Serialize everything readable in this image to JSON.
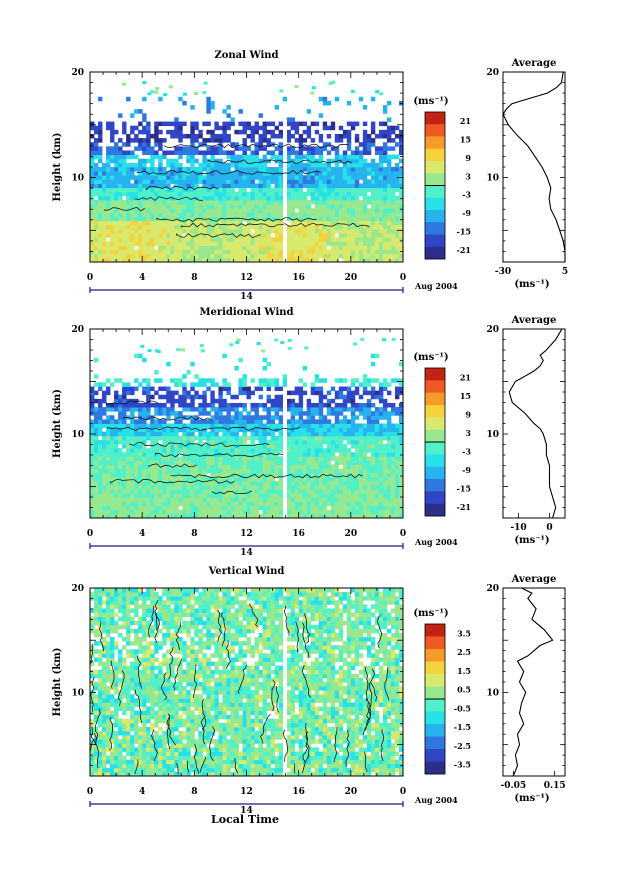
{
  "xlabel_bottom": "Local Time",
  "panels": [
    {
      "title": "Zonal Wind",
      "ylabel": "Height (km)",
      "yticks": [
        "20",
        "10"
      ],
      "xticks": [
        "0",
        "4",
        "8",
        "12",
        "16",
        "20",
        "0"
      ],
      "day": "14",
      "date": "Aug 2004",
      "unit": "(ms⁻¹)",
      "cb_labels": [
        "21",
        "15",
        "9",
        "3",
        "-3",
        "-9",
        "-15",
        "-21"
      ],
      "avg_title": "Average",
      "avg_yticks": [
        "20",
        "10"
      ],
      "avg_xticks": [
        "-30",
        "5"
      ],
      "avg_unit": "(ms⁻¹)"
    },
    {
      "title": "Meridional Wind",
      "ylabel": "Height (km)",
      "yticks": [
        "20",
        "10"
      ],
      "xticks": [
        "0",
        "4",
        "8",
        "12",
        "16",
        "20",
        "0"
      ],
      "day": "14",
      "date": "Aug 2004",
      "unit": "(ms⁻¹)",
      "cb_labels": [
        "21",
        "15",
        "9",
        "3",
        "-3",
        "-9",
        "-15",
        "-21"
      ],
      "avg_title": "Average",
      "avg_yticks": [
        "20",
        "10"
      ],
      "avg_xticks": [
        "-10",
        "0"
      ],
      "avg_unit": "(ms⁻¹)"
    },
    {
      "title": "Vertical Wind",
      "ylabel": "Height (km)",
      "yticks": [
        "20",
        "10"
      ],
      "xticks": [
        "0",
        "4",
        "8",
        "12",
        "16",
        "20",
        "0"
      ],
      "day": "14",
      "date": "Aug 2004",
      "unit": "(ms⁻¹)",
      "cb_labels": [
        "3.5",
        "2.5",
        "1.5",
        "0.5",
        "-0.5",
        "-1.5",
        "-2.5",
        "-3.5"
      ],
      "avg_title": "Average",
      "avg_yticks": [
        "20",
        "10"
      ],
      "avg_xticks": [
        "-0.05",
        "0.15"
      ],
      "avg_unit": "(ms⁻¹)"
    }
  ],
  "chart_data": [
    {
      "type": "heatmap",
      "title": "Zonal Wind",
      "ylabel": "Height (km)",
      "xrange_local_time_h": [
        0,
        24
      ],
      "ylim": [
        2,
        20
      ],
      "colorbar_range": [
        -21,
        21
      ],
      "colors": [
        "#2c2f8a",
        "#3046c6",
        "#2f78e0",
        "#27b4ee",
        "#27e0e8",
        "#52f0c8",
        "#98e890",
        "#d8ea6e",
        "#f6d23c",
        "#f89a2a",
        "#f05a22",
        "#c42216"
      ],
      "height_profile_km": [
        3,
        5,
        7,
        9,
        10,
        11,
        12,
        13,
        14,
        15,
        16,
        17,
        18
      ],
      "mean_zonal_wind_ms": [
        5,
        5,
        4,
        0,
        -3,
        -8,
        -12,
        -16,
        -22,
        -27,
        -30,
        -28,
        -25
      ]
    },
    {
      "type": "line",
      "title": "Average",
      "xlabel": "(ms⁻¹)",
      "xlim": [
        -30,
        5
      ],
      "ylim": [
        2,
        20
      ],
      "x": [
        5,
        5,
        4,
        2,
        0,
        -3,
        -4,
        -3,
        -5,
        -8,
        -12,
        -16,
        -22,
        -27,
        -30,
        -28,
        -25,
        -15,
        -5,
        0,
        3,
        4
      ],
      "y": [
        2,
        3,
        4,
        5,
        6,
        7,
        8,
        9,
        10,
        11,
        12,
        13,
        14,
        15,
        16,
        16.5,
        17,
        17.5,
        18,
        18.5,
        19,
        20
      ]
    },
    {
      "type": "heatmap",
      "title": "Meridional Wind",
      "ylabel": "Height (km)",
      "xrange_local_time_h": [
        0,
        24
      ],
      "ylim": [
        2,
        20
      ],
      "colorbar_range": [
        -21,
        21
      ],
      "colors": [
        "#2c2f8a",
        "#3046c6",
        "#2f78e0",
        "#27b4ee",
        "#27e0e8",
        "#52f0c8",
        "#98e890",
        "#d8ea6e",
        "#f6d23c",
        "#f89a2a",
        "#f05a22",
        "#c42216"
      ]
    },
    {
      "type": "line",
      "title": "Average",
      "xlabel": "(ms⁻¹)",
      "xlim": [
        -15,
        5
      ],
      "ylim": [
        2,
        20
      ],
      "x": [
        1,
        2,
        1,
        0,
        0,
        0,
        -1,
        -1,
        -2,
        -3,
        -5,
        -8,
        -12,
        -13,
        -11,
        -8,
        -5,
        -3,
        -2,
        -3,
        -1,
        2,
        3,
        4
      ],
      "y": [
        2,
        3,
        4,
        5,
        6,
        7,
        8,
        9,
        10,
        10.5,
        11,
        12,
        13,
        14,
        15,
        15.5,
        16,
        16.5,
        17,
        17.5,
        18,
        19,
        19.5,
        20
      ]
    },
    {
      "type": "heatmap",
      "title": "Vertical Wind",
      "ylabel": "Height (km)",
      "xrange_local_time_h": [
        0,
        24
      ],
      "ylim": [
        2,
        20
      ],
      "colorbar_range": [
        -3.5,
        3.5
      ],
      "colors": [
        "#2c2f8a",
        "#3046c6",
        "#2f78e0",
        "#27b4ee",
        "#27e0e8",
        "#52f0c8",
        "#98e890",
        "#d8ea6e",
        "#f6d23c",
        "#f89a2a",
        "#f05a22",
        "#c42216"
      ]
    },
    {
      "type": "line",
      "title": "Average",
      "xlabel": "(ms⁻¹)",
      "xlim": [
        -0.1,
        0.2
      ],
      "ylim": [
        2,
        20
      ],
      "x": [
        -0.05,
        -0.03,
        -0.04,
        -0.02,
        -0.03,
        0.0,
        -0.02,
        -0.01,
        0.01,
        -0.02,
        0.0,
        -0.03,
        0.02,
        0.05,
        0.08,
        0.14,
        0.1,
        0.04,
        0.06,
        0.02,
        0.04,
        -0.01
      ],
      "y": [
        2,
        3,
        4,
        5,
        6,
        7,
        8,
        9,
        10,
        11,
        12,
        13,
        13.5,
        14,
        14.5,
        15,
        16,
        17,
        18,
        19,
        19.5,
        20
      ]
    }
  ]
}
